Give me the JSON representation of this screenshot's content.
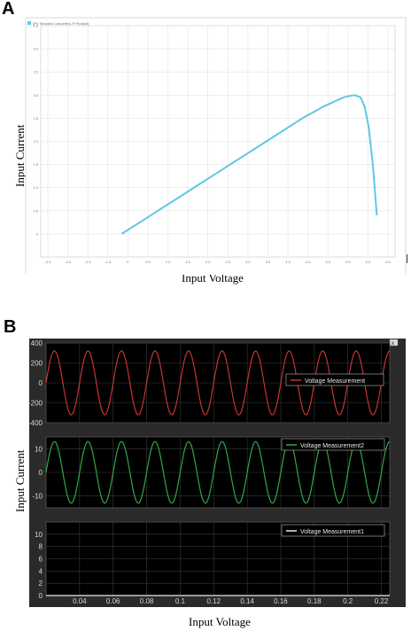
{
  "panel_a_label": "A",
  "panel_b_label": "B",
  "chart_data": [
    {
      "type": "line",
      "panel": "A",
      "legend": [
        "(PV Simulink Converted, P Product)"
      ],
      "ylabel": "Input Current",
      "xlabel": "Input Voltage",
      "xlim": [
        -4,
        13.5
      ],
      "ylim": [
        -0.5,
        4.5
      ],
      "xticks": [
        "-4.5",
        "-3.5",
        "-2.5",
        "-1.5",
        "0",
        "0.5",
        "1.0",
        "1.5",
        "2.0",
        "2.5",
        "3.0",
        "3.5",
        "4.0",
        "4.5",
        "5.0",
        "5.5",
        "6.0",
        "6.5"
      ],
      "yticks": [
        "0",
        "0.5",
        "1.0",
        "1.5",
        "2.0",
        "2.5",
        "3.0",
        "3.5",
        "4.0",
        "4.5"
      ],
      "series": [
        {
          "color": "#5ec8e6",
          "x": [
            0,
            1,
            2,
            3,
            4,
            5,
            6,
            7,
            8,
            8.5,
            9,
            9.5,
            10,
            10.5,
            11,
            11.5,
            11.8,
            12,
            12.2,
            12.4,
            12.6
          ],
          "y": [
            0,
            0.28,
            0.56,
            0.84,
            1.12,
            1.4,
            1.68,
            1.96,
            2.24,
            2.38,
            2.52,
            2.64,
            2.76,
            2.86,
            2.96,
            3.0,
            2.95,
            2.75,
            2.3,
            1.5,
            0.4
          ]
        }
      ]
    },
    {
      "type": "line",
      "panel": "B",
      "background": "#000000",
      "ylabel": "Input Current",
      "xlabel": "Input Voltage",
      "xlim": [
        0.02,
        0.225
      ],
      "x_tick_labels": [
        "0.04",
        "0.06",
        "0.08",
        "0.1",
        "0.12",
        "0.14",
        "0.16",
        "0.18",
        "0.2",
        "0.22"
      ],
      "subplots": [
        {
          "legend": "Voltage Measurement",
          "color": "#c83232",
          "ylim": [
            -400,
            400
          ],
          "y_tick_labels": [
            "400",
            "200",
            "0",
            "-200",
            "-400"
          ],
          "amplitude": 320,
          "frequency_hz": 50,
          "phase_deg": 0
        },
        {
          "legend": "Voltage Measurement2",
          "color": "#2fa84a",
          "ylim": [
            -15,
            15
          ],
          "y_tick_labels": [
            "10",
            "0",
            "-10"
          ],
          "amplitude": 13,
          "frequency_hz": 50,
          "phase_deg": 0
        },
        {
          "legend": "Voltage Measurement1",
          "color": "#e8e8e8",
          "ylim": [
            0,
            12
          ],
          "y_tick_labels": [
            "10",
            "8",
            "6",
            "4",
            "2",
            "0"
          ],
          "constant": 0
        }
      ]
    }
  ]
}
